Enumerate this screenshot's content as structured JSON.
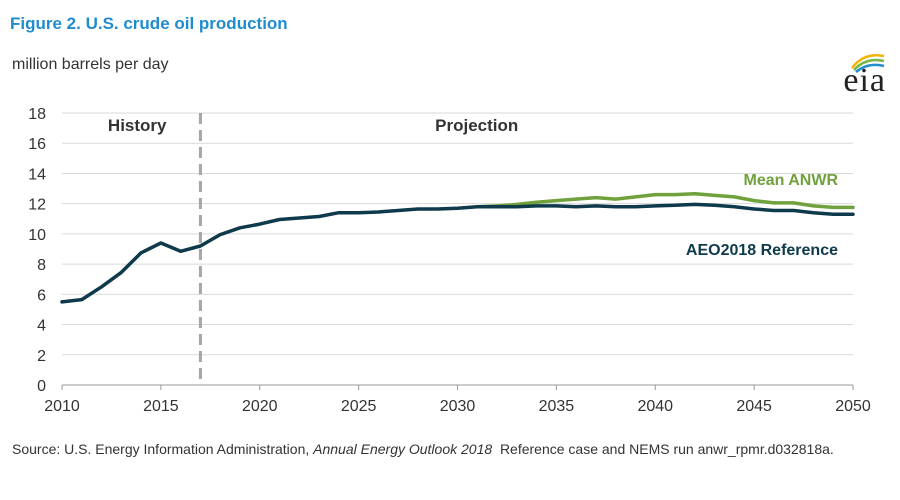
{
  "title": "Figure 2. U.S. crude oil production",
  "units_label": "million barrels per day",
  "logo_text": "eia",
  "source": {
    "prefix": "Source: U.S. Energy Information Administration,",
    "italic": "Annual Energy Outlook 2018",
    "suffix": "Reference case and NEMS run anwr_rpmr.d032818a."
  },
  "colors": {
    "reference": "#0e3a4c",
    "anwr": "#70a13c",
    "divider": "#a6a6a6",
    "grid": "#d9d9d9",
    "title": "#1f8ccf"
  },
  "chart_data": {
    "type": "line",
    "xlim": [
      2010,
      2050
    ],
    "ylim": [
      0,
      18
    ],
    "xticks": [
      2010,
      2015,
      2020,
      2025,
      2030,
      2035,
      2040,
      2045,
      2050
    ],
    "yticks": [
      0,
      2,
      4,
      6,
      8,
      10,
      12,
      14,
      16,
      18
    ],
    "grid": true,
    "divider_year": 2017,
    "region_labels": [
      "History",
      "Projection"
    ],
    "series": [
      {
        "name": "AEO2018 Reference",
        "color": "#0e3a4c",
        "x": [
          2010,
          2011,
          2012,
          2013,
          2014,
          2015,
          2016,
          2017,
          2018,
          2019,
          2020,
          2021,
          2022,
          2023,
          2024,
          2025,
          2026,
          2027,
          2028,
          2029,
          2030,
          2031,
          2032,
          2033,
          2034,
          2035,
          2036,
          2037,
          2038,
          2039,
          2040,
          2041,
          2042,
          2043,
          2044,
          2045,
          2046,
          2047,
          2048,
          2049,
          2050
        ],
        "values": [
          5.5,
          5.65,
          6.5,
          7.45,
          8.75,
          9.4,
          8.85,
          9.2,
          9.95,
          10.4,
          10.65,
          10.95,
          11.05,
          11.15,
          11.4,
          11.4,
          11.45,
          11.55,
          11.65,
          11.65,
          11.7,
          11.8,
          11.8,
          11.8,
          11.85,
          11.85,
          11.8,
          11.85,
          11.8,
          11.8,
          11.85,
          11.9,
          11.95,
          11.9,
          11.8,
          11.65,
          11.55,
          11.55,
          11.4,
          11.3,
          11.3
        ]
      },
      {
        "name": "Mean ANWR",
        "color": "#70a13c",
        "x": [
          2031,
          2032,
          2033,
          2034,
          2035,
          2036,
          2037,
          2038,
          2039,
          2040,
          2041,
          2042,
          2043,
          2044,
          2045,
          2046,
          2047,
          2048,
          2049,
          2050
        ],
        "values": [
          11.8,
          11.85,
          11.95,
          12.1,
          12.2,
          12.3,
          12.4,
          12.3,
          12.45,
          12.6,
          12.6,
          12.65,
          12.55,
          12.45,
          12.2,
          12.05,
          12.05,
          11.85,
          11.75,
          11.75
        ]
      }
    ]
  }
}
